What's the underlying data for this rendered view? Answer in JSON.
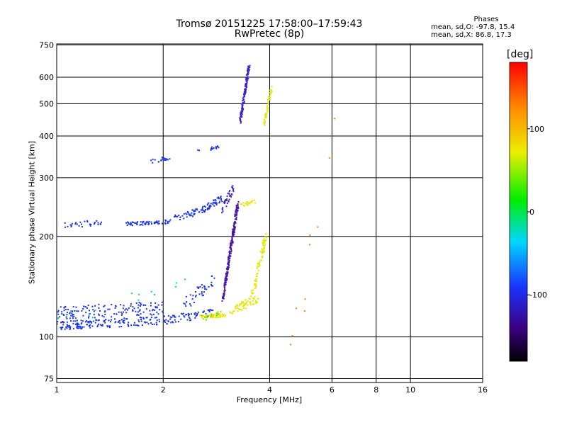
{
  "chart_data": {
    "type": "scatter",
    "title": "Tromsø 20151225 17:58:00–17:59:43",
    "subtitle": "RwPretec (8p)",
    "xlabel": "Frequency [MHz]",
    "ylabel": "Stationary phase Virtual Height [km]",
    "x_scale": "log",
    "y_scale": "log",
    "xlim": [
      1,
      16
    ],
    "ylim": [
      73,
      755
    ],
    "x_ticks": [
      1,
      2,
      4,
      6,
      8,
      10,
      16
    ],
    "y_ticks": [
      75,
      100,
      200,
      300,
      400,
      500,
      600,
      750
    ],
    "grid": true,
    "legend_position": "none",
    "phases": {
      "title": "Phases",
      "o_label": "mean, sd,O: -97.8, 15.4",
      "x_label": "mean, sd,X:  86.8, 17.3"
    },
    "colorbar": {
      "unit": "[deg]",
      "range": [
        -180,
        180
      ],
      "ticks": [
        100,
        0,
        -100
      ],
      "tick_labels": [
        "100",
        "0",
        "-100"
      ]
    },
    "series": [
      {
        "color": "#1a33e0",
        "segments": [
          {
            "x0": 1.0,
            "x1": 2.0,
            "y0": 108,
            "y1": 112,
            "n": 160,
            "jit": 0.03
          },
          {
            "x0": 1.0,
            "x1": 2.0,
            "y0": 118,
            "y1": 122,
            "n": 140,
            "jit": 0.045
          },
          {
            "x0": 2.0,
            "x1": 2.8,
            "y0": 112,
            "y1": 118,
            "n": 70,
            "jit": 0.03
          },
          {
            "x0": 2.3,
            "x1": 2.8,
            "y0": 125,
            "y1": 150,
            "n": 40,
            "jit": 0.04
          },
          {
            "x0": 1.05,
            "x1": 1.4,
            "y0": 215,
            "y1": 222,
            "n": 30,
            "jit": 0.02
          },
          {
            "x0": 1.55,
            "x1": 2.0,
            "y0": 218,
            "y1": 220,
            "n": 55,
            "jit": 0.012
          },
          {
            "x0": 2.0,
            "x1": 2.6,
            "y0": 222,
            "y1": 240,
            "n": 55,
            "jit": 0.025
          },
          {
            "x0": 2.6,
            "x1": 2.95,
            "y0": 240,
            "y1": 262,
            "n": 45,
            "jit": 0.025
          },
          {
            "x0": 1.85,
            "x1": 2.1,
            "y0": 335,
            "y1": 345,
            "n": 20,
            "jit": 0.015
          },
          {
            "x0": 2.5,
            "x1": 2.9,
            "y0": 360,
            "y1": 370,
            "n": 14,
            "jit": 0.012
          }
        ]
      },
      {
        "color": "#3a22c4",
        "segments": [
          {
            "x0": 2.95,
            "x1": 3.15,
            "y0": 240,
            "y1": 280,
            "n": 40,
            "jit": 0.03
          },
          {
            "x0": 3.3,
            "x1": 3.5,
            "y0": 440,
            "y1": 650,
            "n": 130,
            "jit": 0.018
          }
        ]
      },
      {
        "color": "#4a16a6",
        "segments": [
          {
            "x0": 2.95,
            "x1": 3.25,
            "y0": 130,
            "y1": 250,
            "n": 240,
            "jit": 0.02
          }
        ]
      },
      {
        "color": "#e6e600",
        "segments": [
          {
            "x0": 2.55,
            "x1": 3.0,
            "y0": 115,
            "y1": 116,
            "n": 50,
            "jit": 0.012
          },
          {
            "x0": 3.1,
            "x1": 3.7,
            "y0": 120,
            "y1": 130,
            "n": 60,
            "jit": 0.03
          },
          {
            "x0": 3.55,
            "x1": 3.9,
            "y0": 130,
            "y1": 200,
            "n": 80,
            "jit": 0.03
          },
          {
            "x0": 3.3,
            "x1": 3.65,
            "y0": 248,
            "y1": 255,
            "n": 20,
            "jit": 0.012
          },
          {
            "x0": 3.85,
            "x1": 4.05,
            "y0": 430,
            "y1": 560,
            "n": 45,
            "jit": 0.02
          }
        ]
      },
      {
        "color": "#88dd00",
        "segments": [
          {
            "x0": 2.6,
            "x1": 2.95,
            "y0": 113,
            "y1": 119,
            "n": 18,
            "jit": 0.015
          }
        ]
      },
      {
        "color": "#00c8e0",
        "segments": [
          {
            "x0": 1.0,
            "x1": 2.3,
            "y0": 110,
            "y1": 150,
            "n": 14,
            "jit": 0.05
          }
        ]
      },
      {
        "color": "#ff7a00",
        "segments": [
          {
            "x0": 4.5,
            "x1": 6.5,
            "y0": 85,
            "y1": 500,
            "n": 10,
            "jit": 0.2
          }
        ]
      }
    ]
  }
}
